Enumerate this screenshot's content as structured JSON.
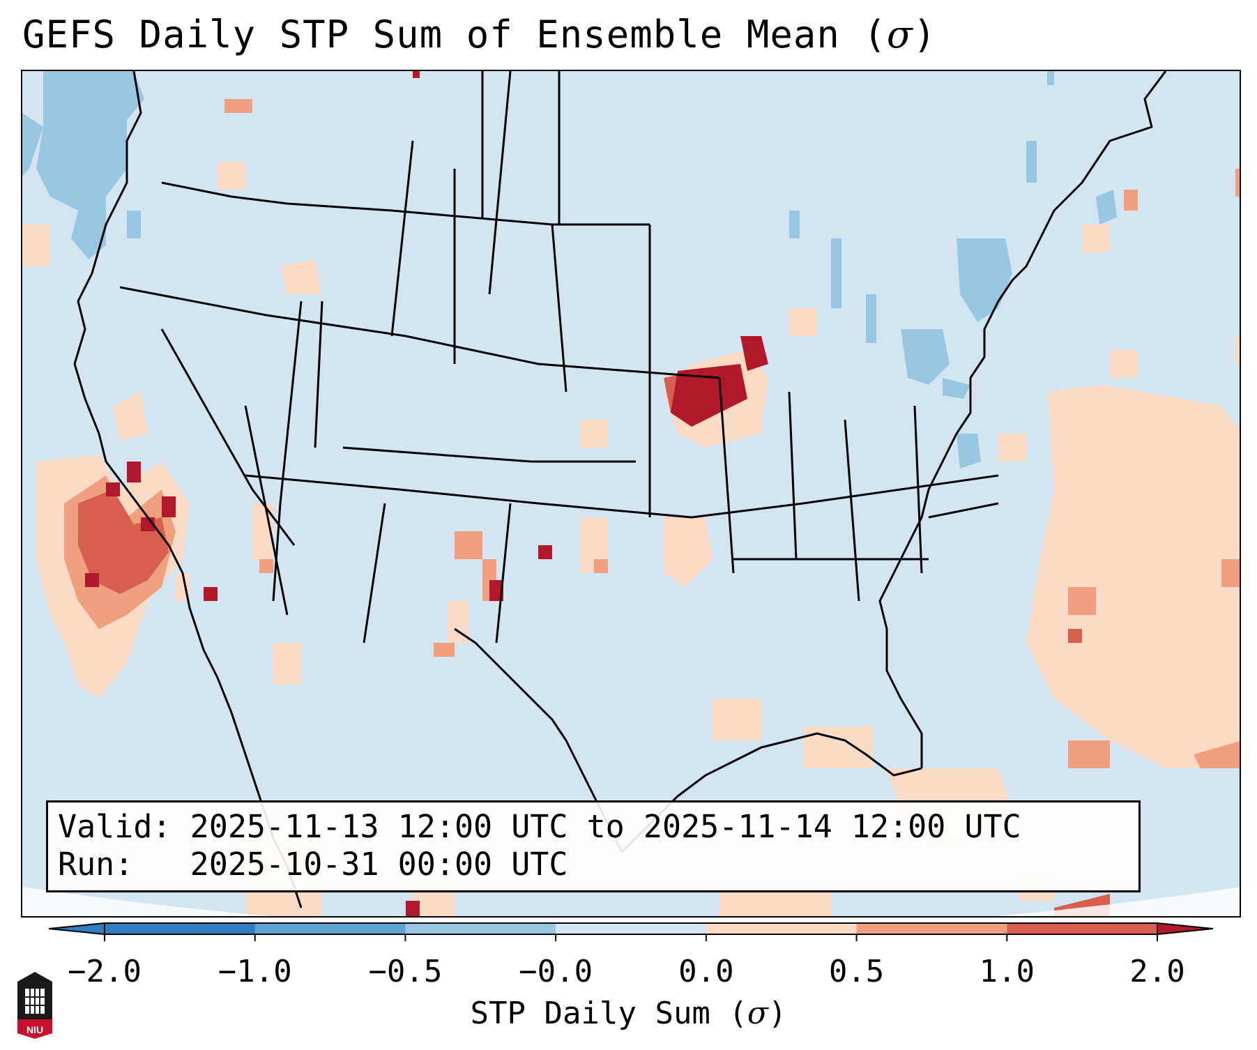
{
  "title": "GEFS Daily STP Sum of Ensemble Mean (",
  "title_symbol": "σ",
  "title_close": ")",
  "info": {
    "valid_line": "Valid: 2025-11-13 12:00 UTC to 2025-11-14 12:00 UTC",
    "run_line": "Run:   2025-10-31 00:00 UTC"
  },
  "colorbar": {
    "label_prefix": "STP Daily Sum (",
    "label_symbol": "σ",
    "label_suffix": ")",
    "ticks": [
      "−2.0",
      "−1.0",
      "−0.5",
      "−0.0",
      "0.0",
      "0.5",
      "1.0",
      "2.0"
    ],
    "colors": [
      "#2f7fc0",
      "#5fa3d3",
      "#98c8e1",
      "#d2e5f1",
      "#fbdac6",
      "#f0a07f",
      "#d6604d",
      "#b2182b"
    ]
  },
  "logo_text": "NIU",
  "colors": {
    "map_background": "#d2e5f1",
    "strong_positive": "#b2182b",
    "positive": "#d6604d",
    "mild_positive": "#f0a07f",
    "weak_positive": "#fbdac6",
    "weak_negative": "#98c8e1"
  }
}
